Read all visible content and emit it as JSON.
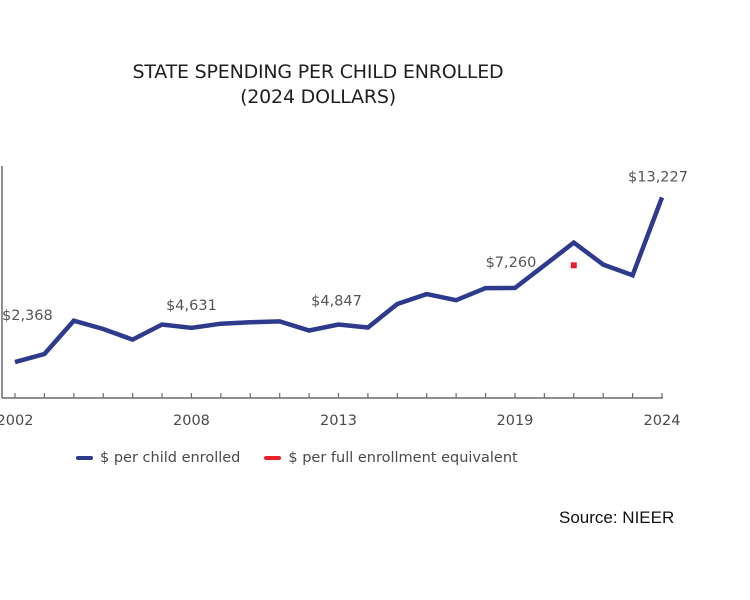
{
  "chart_data": {
    "type": "line",
    "title": "STATE SPENDING PER CHILD ENROLLED",
    "subtitle": "(2024 DOLLARS)",
    "xlabel": "",
    "ylabel": "",
    "x": [
      2002,
      2003,
      2004,
      2005,
      2006,
      2007,
      2008,
      2009,
      2010,
      2011,
      2012,
      2013,
      2014,
      2015,
      2016,
      2017,
      2018,
      2019,
      2020,
      2021,
      2022,
      2023,
      2024
    ],
    "x_tick_labels": [
      {
        "year": 2002,
        "label": "2002"
      },
      {
        "year": 2008,
        "label": "2008"
      },
      {
        "year": 2013,
        "label": "2013"
      },
      {
        "year": 2019,
        "label": "2019"
      },
      {
        "year": 2024,
        "label": "2024"
      }
    ],
    "xlim": [
      2002,
      2024
    ],
    "ylim": [
      0,
      15300
    ],
    "grid": false,
    "legend_position": "bottom",
    "series": [
      {
        "name": "$ per child enrolled",
        "color": "#2e3a8c",
        "values": [
          2368,
          2900,
          5100,
          4550,
          3850,
          4850,
          4631,
          4900,
          5000,
          5050,
          4450,
          4847,
          4650,
          6200,
          6850,
          6450,
          7250,
          7260,
          8750,
          10250,
          8800,
          8100,
          13227
        ]
      },
      {
        "name": "$ per full enrollment equivalent",
        "color": "#e8202a",
        "points": [
          {
            "x": 2021,
            "y": 8750
          }
        ]
      }
    ],
    "annotations": [
      {
        "x": 2002,
        "y": 2368,
        "text": "$2,368"
      },
      {
        "x": 2008,
        "y": 4631,
        "text": "$4,631"
      },
      {
        "x": 2013,
        "y": 4847,
        "text": "$4,847"
      },
      {
        "x": 2019,
        "y": 7260,
        "text": "$7,260"
      },
      {
        "x": 2024,
        "y": 13227,
        "text": "$13,227"
      }
    ]
  },
  "legend": [
    {
      "label": "$ per child enrolled",
      "color": "#2e3a8c"
    },
    {
      "label": "$ per full enrollment equivalent",
      "color": "#e8202a"
    }
  ],
  "source": "Source: NIEER"
}
